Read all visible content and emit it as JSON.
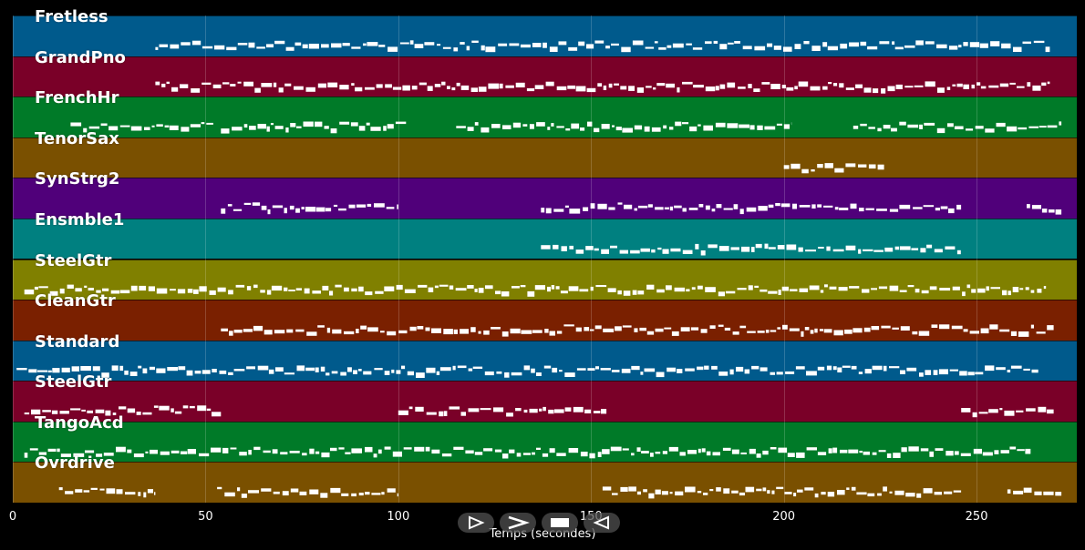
{
  "chart_data": {
    "type": "piano-roll",
    "x_label": "Temps (secondes)",
    "xlim": [
      0,
      276
    ],
    "x_ticks": [
      "0",
      "50",
      "100",
      "150",
      "200",
      "250"
    ],
    "x_tick_values": [
      0,
      50,
      100,
      150,
      200,
      250
    ],
    "grid": "vertical",
    "tracks": [
      {
        "name": "Fretless",
        "color": "#005a8c",
        "segments": [
          [
            37,
            269
          ]
        ]
      },
      {
        "name": "GrandPno",
        "color": "#7a0028",
        "segments": [
          [
            37,
            269
          ]
        ]
      },
      {
        "name": "FrenchHr",
        "color": "#007a28",
        "segments": [
          [
            15,
            52
          ],
          [
            54,
            102
          ],
          [
            115,
            202
          ],
          [
            218,
            272
          ]
        ]
      },
      {
        "name": "TenorSax",
        "color": "#7a5000",
        "segments": [
          [
            200,
            226
          ]
        ]
      },
      {
        "name": "SynStrg2",
        "color": "#50007a",
        "segments": [
          [
            54,
            100
          ],
          [
            137,
            246
          ],
          [
            263,
            272
          ]
        ]
      },
      {
        "name": "Ensmble1",
        "color": "#008080",
        "segments": [
          [
            137,
            246
          ]
        ]
      },
      {
        "name": "SteelGtr",
        "color": "#808000",
        "segments": [
          [
            3,
            268
          ]
        ]
      },
      {
        "name": "CleanGtr",
        "color": "#7a2000",
        "segments": [
          [
            54,
            270
          ]
        ]
      },
      {
        "name": "Standard",
        "color": "#005a8c",
        "segments": [
          [
            1,
            266
          ]
        ]
      },
      {
        "name": "SteelGtr",
        "color": "#7a0028",
        "segments": [
          [
            3,
            54
          ],
          [
            100,
            154
          ],
          [
            246,
            270
          ]
        ]
      },
      {
        "name": "TangoAcd",
        "color": "#007a28",
        "segments": [
          [
            3,
            264
          ]
        ]
      },
      {
        "name": "Ovrdrive",
        "color": "#7a5000",
        "segments": [
          [
            12,
            37
          ],
          [
            53,
            100
          ],
          [
            153,
            246
          ],
          [
            258,
            272
          ]
        ]
      }
    ]
  },
  "controls": [
    {
      "name": "play-forward-button",
      "icon": "play-outline-icon"
    },
    {
      "name": "fast-forward-button",
      "icon": "chevron-right-icon"
    },
    {
      "name": "stop-button",
      "icon": "stop-icon"
    },
    {
      "name": "rewind-button",
      "icon": "play-back-outline-icon"
    }
  ]
}
